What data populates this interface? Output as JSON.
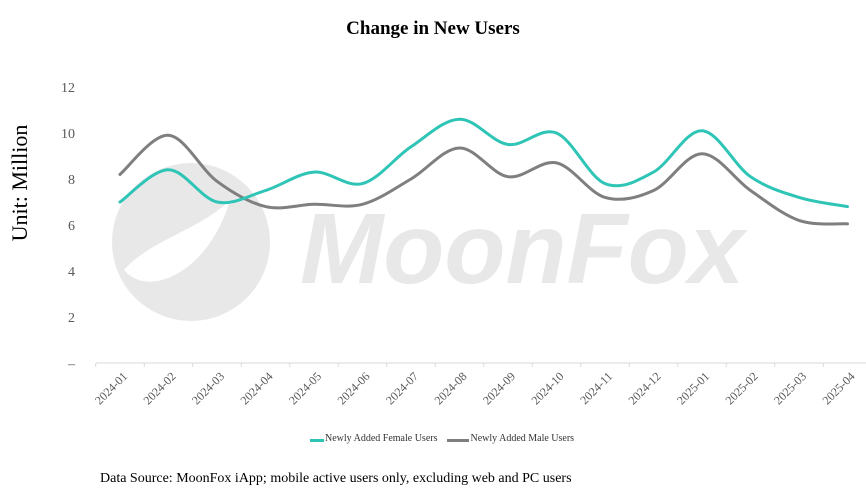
{
  "chart_data": {
    "type": "line",
    "title": "Change in New Users",
    "ylabel": "Unit: Million",
    "xlabel": "",
    "ylim": [
      0,
      12
    ],
    "yticks": [
      0,
      2,
      4,
      6,
      8,
      10,
      12
    ],
    "ytick_labels": [
      "–",
      "2",
      "4",
      "6",
      "8",
      "10",
      "12"
    ],
    "categories": [
      "2024-01",
      "2024-02",
      "2024-03",
      "2024-04",
      "2024-05",
      "2024-06",
      "2024-07",
      "2024-08",
      "2024-09",
      "2024-10",
      "2024-11",
      "2024-12",
      "2025-01",
      "2025-02",
      "2025-03",
      "2025-04"
    ],
    "series": [
      {
        "name": "Newly Added Female Users",
        "color": "#2ec4b6",
        "values": [
          7.0,
          8.4,
          7.0,
          7.5,
          8.3,
          7.8,
          9.4,
          10.6,
          9.5,
          10.0,
          7.8,
          8.3,
          10.1,
          8.1,
          7.2,
          6.8
        ]
      },
      {
        "name": "Newly Added Male Users",
        "color": "#7f7f7f",
        "values": [
          8.2,
          9.9,
          7.9,
          6.8,
          6.9,
          6.9,
          8.0,
          9.35,
          8.1,
          8.7,
          7.2,
          7.5,
          9.1,
          7.5,
          6.2,
          6.05
        ]
      }
    ],
    "grid": false,
    "legend": "bottom"
  },
  "watermark": "MoonFox",
  "source": "Data Source: MoonFox iApp; mobile active users only, excluding web and PC users"
}
